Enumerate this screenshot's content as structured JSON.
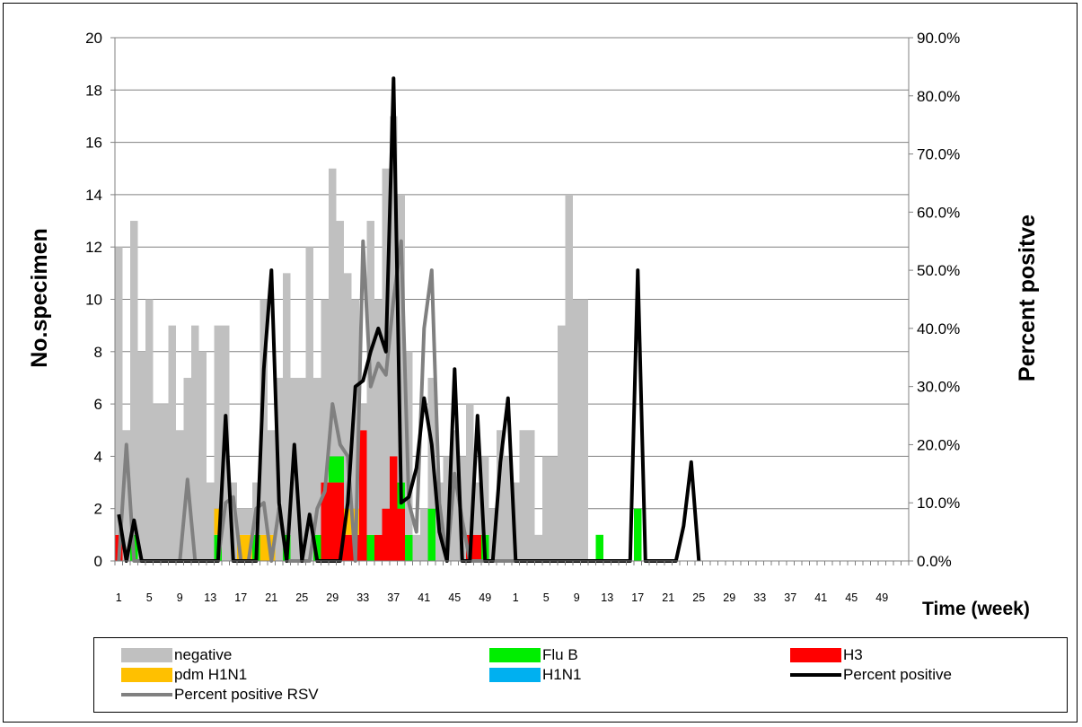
{
  "chart_data": {
    "type": "bar",
    "stacked": true,
    "title": "",
    "ylabel_left": "No.specimen",
    "ylabel_right": "Percent positve",
    "xlabel": "Time (week)",
    "ylim_left": [
      0,
      20
    ],
    "ylim_right": [
      0,
      0.9
    ],
    "y_ticks_left": [
      "0",
      "2",
      "4",
      "6",
      "8",
      "10",
      "12",
      "14",
      "16",
      "18",
      "20"
    ],
    "y_ticks_right": [
      "0.0%",
      "10.0%",
      "20.0%",
      "30.0%",
      "40.0%",
      "50.0%",
      "60.0%",
      "70.0%",
      "80.0%",
      "90.0%"
    ],
    "x_tick_labels": [
      "1",
      "5",
      "9",
      "13",
      "17",
      "21",
      "25",
      "29",
      "33",
      "37",
      "41",
      "45",
      "49",
      "1",
      "5",
      "9",
      "13",
      "17",
      "21",
      "25",
      "29",
      "33",
      "37",
      "41",
      "45",
      "49"
    ],
    "grid": true,
    "legend_position": "bottom",
    "weeks_count": 104,
    "series": [
      {
        "name": "negative",
        "kind": "bar",
        "color": "#c0c0c0",
        "values": [
          11,
          5,
          12,
          8,
          10,
          6,
          6,
          9,
          5,
          7,
          9,
          8,
          3,
          7,
          9,
          3,
          1,
          1,
          2,
          9,
          4,
          7,
          10,
          7,
          7,
          12,
          6,
          7,
          11,
          9,
          9,
          8,
          1,
          12,
          9,
          13,
          13,
          11,
          7,
          1,
          2,
          5,
          3,
          4,
          5,
          4,
          5,
          2,
          3,
          2,
          5,
          4,
          3,
          5,
          5,
          1,
          4,
          4,
          9,
          14,
          10,
          10
        ]
      },
      {
        "name": "Flu B",
        "kind": "bar",
        "color": "#00ee00",
        "values": [
          0,
          0,
          1,
          0,
          0,
          0,
          0,
          0,
          0,
          0,
          0,
          0,
          0,
          1,
          0,
          0,
          0,
          0,
          1,
          0,
          0,
          0,
          1,
          0,
          0,
          0,
          1,
          0,
          1,
          1,
          0,
          0,
          0,
          1,
          0,
          0,
          0,
          1,
          1,
          0,
          0,
          2,
          0,
          0,
          0,
          0,
          0,
          0,
          1,
          0,
          0,
          0,
          0,
          0,
          0,
          0,
          0,
          0,
          0,
          0,
          0,
          0,
          0,
          1,
          0,
          0,
          0,
          0,
          2,
          0,
          0,
          0
        ]
      },
      {
        "name": "H3",
        "kind": "bar",
        "color": "#ff0000",
        "values": [
          1,
          0,
          0,
          0,
          0,
          0,
          0,
          0,
          0,
          0,
          0,
          0,
          0,
          0,
          0,
          0,
          0,
          0,
          0,
          0,
          0,
          0,
          0,
          0,
          0,
          0,
          0,
          3,
          3,
          3,
          1,
          1,
          5,
          0,
          1,
          2,
          4,
          2,
          0,
          0,
          0,
          0,
          0,
          0,
          0,
          0,
          1,
          1,
          0,
          0,
          0,
          0,
          0,
          0,
          0,
          0,
          0,
          0,
          0,
          0,
          0,
          0,
          0,
          0,
          0,
          0,
          0,
          0,
          0,
          0
        ]
      },
      {
        "name": "pdm H1N1",
        "kind": "bar",
        "color": "#ffc000",
        "values": [
          0,
          0,
          0,
          0,
          0,
          0,
          0,
          0,
          0,
          0,
          0,
          0,
          0,
          1,
          0,
          0,
          1,
          1,
          0,
          1,
          1,
          0,
          0,
          0,
          0,
          0,
          0,
          0,
          0,
          0,
          1,
          1,
          0,
          0,
          0,
          0,
          0,
          0,
          0,
          0,
          0,
          0,
          0,
          0,
          0,
          0,
          0,
          0,
          0,
          0
        ]
      },
      {
        "name": "H1N1",
        "kind": "bar",
        "color": "#00b0f0",
        "values": []
      },
      {
        "name": "Percent positive",
        "kind": "line",
        "axis": "right",
        "color": "#000000",
        "values": [
          0.08,
          0,
          0.07,
          0,
          0,
          0,
          0,
          0,
          0,
          0,
          0,
          0,
          0,
          0,
          0.25,
          0,
          0,
          0,
          0,
          0.33,
          0.5,
          0.1,
          0,
          0.2,
          0,
          0.08,
          0,
          0,
          0,
          0,
          0.1,
          0.3,
          0.31,
          0.36,
          0.4,
          0.36,
          0.83,
          0.1,
          0.11,
          0.16,
          0.28,
          0.2,
          0.05,
          0,
          0.33,
          0,
          0,
          0.25,
          0,
          0,
          0.17,
          0.28,
          0,
          0,
          0,
          0,
          0,
          0,
          0,
          0,
          0,
          0,
          0,
          0,
          0,
          0,
          0,
          0,
          0.5,
          0,
          0,
          0,
          0,
          0,
          0.06,
          0.17,
          0
        ]
      },
      {
        "name": "Percent positive RSV",
        "kind": "line",
        "axis": "right",
        "color": "#808080",
        "values": [
          0,
          0.2,
          0,
          0,
          0,
          0,
          0,
          0,
          0,
          0.14,
          0,
          0,
          0,
          0,
          0.1,
          0.11,
          0,
          0,
          0.09,
          0.1,
          0,
          0.09,
          0,
          0,
          0,
          0,
          0.09,
          0.12,
          0.27,
          0.2,
          0.18,
          0,
          0.55,
          0.3,
          0.34,
          0.32,
          0.45,
          0.55,
          0.1,
          0.05,
          0.4,
          0.5,
          0.1,
          0,
          0.15,
          0.07,
          0,
          0,
          0,
          0,
          0,
          0,
          0,
          0,
          0,
          0,
          0,
          0,
          0,
          0,
          0,
          0
        ]
      }
    ]
  },
  "legend": {
    "items": [
      {
        "label": "negative",
        "color": "#c0c0c0",
        "kind": "box"
      },
      {
        "label": "Flu B",
        "color": "#00ee00",
        "kind": "box"
      },
      {
        "label": "H3",
        "color": "#ff0000",
        "kind": "box"
      },
      {
        "label": "pdm H1N1",
        "color": "#ffc000",
        "kind": "box"
      },
      {
        "label": "H1N1",
        "color": "#00b0f0",
        "kind": "box"
      },
      {
        "label": "Percent positive",
        "color": "#000000",
        "kind": "line"
      },
      {
        "label": "Percent positive RSV",
        "color": "#808080",
        "kind": "line"
      }
    ]
  }
}
